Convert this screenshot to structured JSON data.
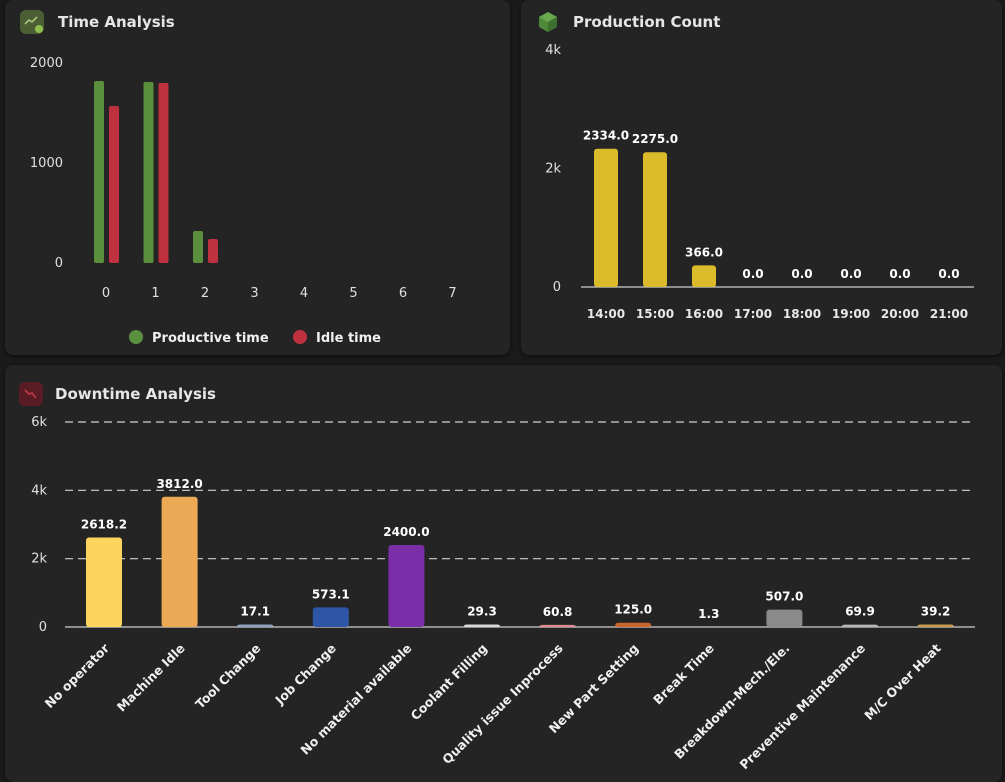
{
  "panels": {
    "time": {
      "title": "Time Analysis",
      "icon": "trend-chart-icon"
    },
    "production": {
      "title": "Production Count",
      "icon": "cube-icon"
    },
    "downtime": {
      "title": "Downtime Analysis",
      "icon": "trend-down-icon"
    }
  },
  "chart_data": [
    {
      "id": "time",
      "type": "bar",
      "categories": [
        "0",
        "1",
        "2",
        "3",
        "4",
        "5",
        "6",
        "7"
      ],
      "series": [
        {
          "name": "Productive time",
          "color": "#5a8f3e",
          "values": [
            1820,
            1810,
            320,
            0,
            0,
            0,
            0,
            0
          ]
        },
        {
          "name": "Idle time",
          "color": "#c0313f",
          "values": [
            1570,
            1800,
            240,
            0,
            0,
            0,
            0,
            0
          ]
        }
      ],
      "yticks": [
        "0",
        "1000",
        "2000"
      ],
      "ylim": [
        0,
        2000
      ],
      "legend": "bottom",
      "grid": false
    },
    {
      "id": "production",
      "type": "bar",
      "categories": [
        "14:00",
        "15:00",
        "16:00",
        "17:00",
        "18:00",
        "19:00",
        "20:00",
        "21:00"
      ],
      "values": [
        2334.0,
        2275.0,
        366.0,
        0,
        0,
        0,
        0,
        0
      ],
      "labels": [
        "2334.0",
        "2275.0",
        "366.0",
        "0.0",
        "0.0",
        "0.0",
        "0.0",
        "0.0"
      ],
      "color": "#dcbb2a",
      "yticks": [
        "0",
        "2k",
        "4k"
      ],
      "ylim": [
        0,
        4000
      ],
      "grid": false
    },
    {
      "id": "downtime",
      "type": "bar",
      "categories": [
        "No operator",
        "Machine Idle",
        "Tool Change",
        "Job Change",
        "No material available",
        "Coolant Filling",
        "Quality issue Inprocess",
        "New Part Setting",
        "Break Time",
        "Breakdown-Mech./Ele.",
        "Preventive Maintenance",
        "M/C Over Heat"
      ],
      "values": [
        2618.2,
        3812.0,
        17.1,
        573.1,
        2400.0,
        29.3,
        60.8,
        125.0,
        1.3,
        507.0,
        69.9,
        39.2
      ],
      "labels": [
        "2618.2",
        "3812.0",
        "17.1",
        "573.1",
        "2400.0",
        "29.3",
        "60.8",
        "125.0",
        "1.3",
        "507.0",
        "69.9",
        "39.2"
      ],
      "colors": [
        "#fcd45e",
        "#eba955",
        "#8fa0c0",
        "#2e56a6",
        "#7a2fa8",
        "#d9d9d9",
        "#e58a92",
        "#c9662a",
        "#9a9a9a",
        "#8a8a8a",
        "#b5b5b5",
        "#c89a4a"
      ],
      "yticks": [
        "0",
        "2k",
        "4k",
        "6k"
      ],
      "ylim": [
        0,
        6000
      ],
      "grid": true
    }
  ]
}
